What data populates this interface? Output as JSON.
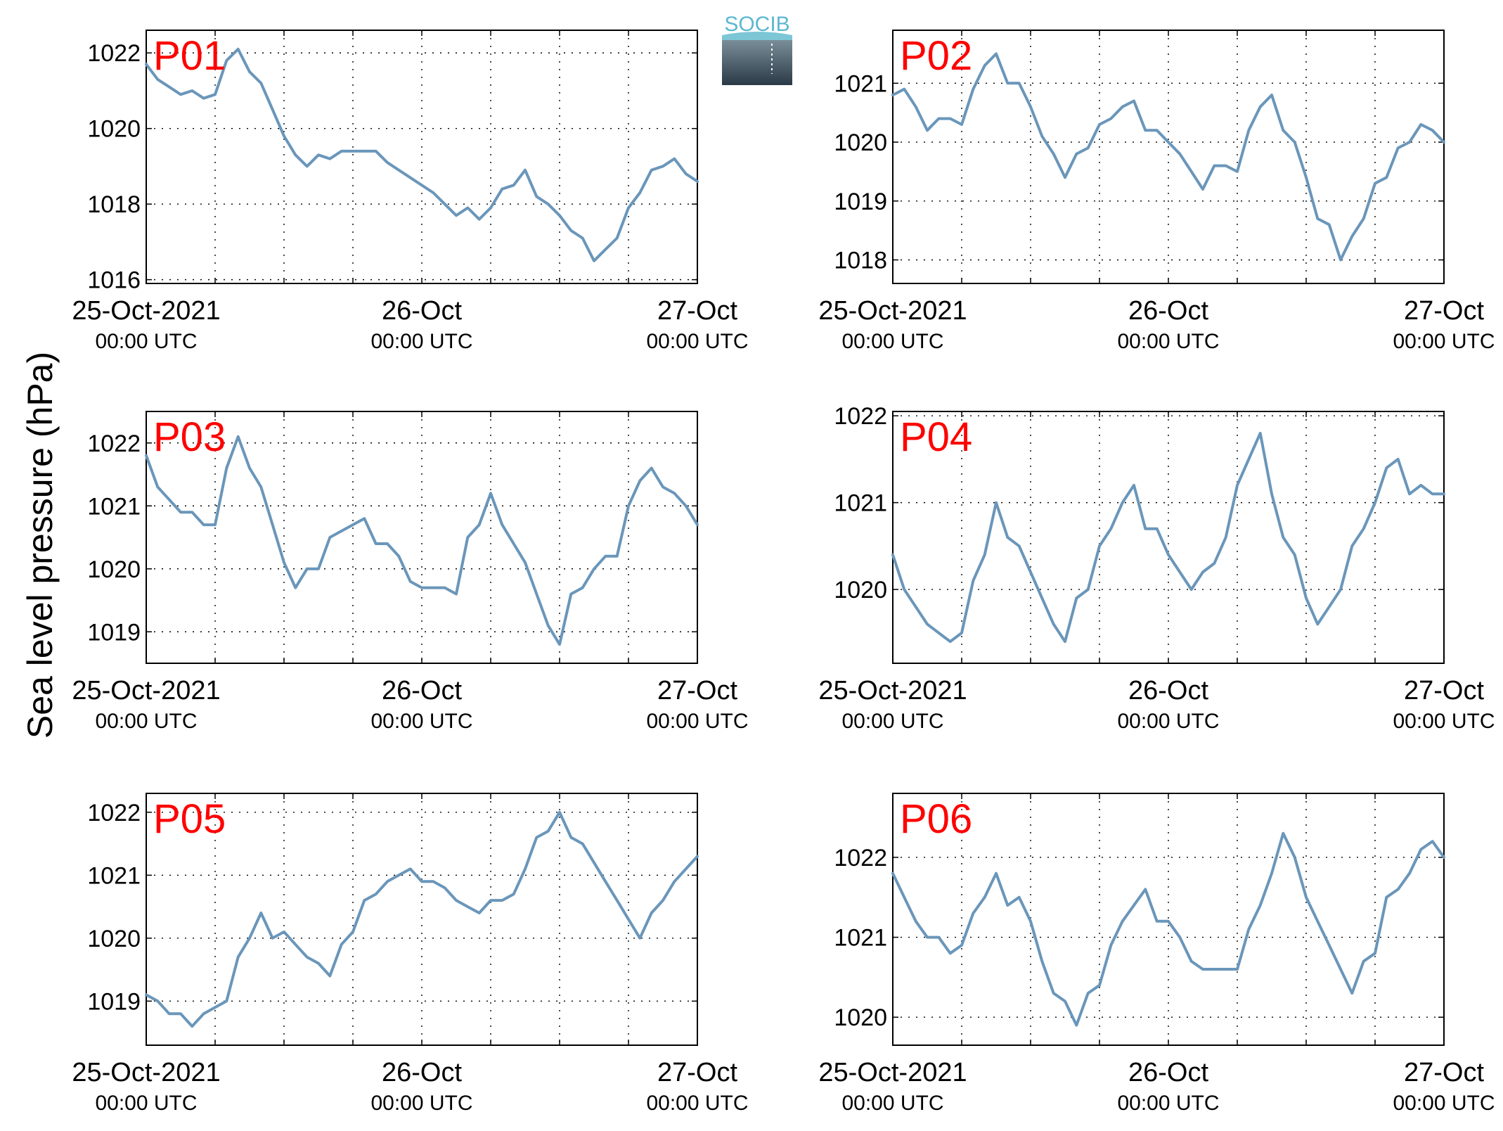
{
  "figure": {
    "ylabel": "Sea level pressure (hPa)",
    "logo_text": "SOCIB",
    "series_color": "#6a96ba",
    "label_color": "#ff0000"
  },
  "chart_data": [
    {
      "type": "line",
      "label": "P01",
      "x_ticks": [
        {
          "main": "25-Oct-2021",
          "sub": "00:00 UTC"
        },
        {
          "main": "26-Oct",
          "sub": "00:00 UTC"
        },
        {
          "main": "27-Oct",
          "sub": "00:00 UTC"
        }
      ],
      "xlim": [
        0,
        48
      ],
      "ylim": [
        1015.9,
        1022.6
      ],
      "yticks": [
        1016,
        1018,
        1020,
        1022
      ],
      "grid": true,
      "x": [
        0,
        1,
        2,
        3,
        4,
        5,
        6,
        7,
        8,
        9,
        10,
        11,
        12,
        13,
        14,
        15,
        16,
        17,
        18,
        19,
        20,
        21,
        22,
        23,
        24,
        25,
        26,
        27,
        28,
        29,
        30,
        31,
        32,
        33,
        34,
        35,
        36,
        37,
        38,
        39,
        40,
        41,
        42,
        43,
        44,
        45,
        46,
        47,
        48
      ],
      "values": [
        1021.7,
        1021.3,
        1021.1,
        1020.9,
        1021.0,
        1020.8,
        1020.9,
        1021.8,
        1022.1,
        1021.5,
        1021.2,
        1020.5,
        1019.8,
        1019.3,
        1019.0,
        1019.3,
        1019.2,
        1019.4,
        1019.4,
        1019.4,
        1019.4,
        1019.1,
        1018.9,
        1018.7,
        1018.5,
        1018.3,
        1018.0,
        1017.7,
        1017.9,
        1017.6,
        1017.9,
        1018.4,
        1018.5,
        1018.9,
        1018.2,
        1018.0,
        1017.7,
        1017.3,
        1017.1,
        1016.5,
        1016.8,
        1017.1,
        1017.9,
        1018.3,
        1018.9,
        1019.0,
        1019.2,
        1018.8,
        1018.6
      ]
    },
    {
      "type": "line",
      "label": "P02",
      "x_ticks": [
        {
          "main": "25-Oct-2021",
          "sub": "00:00 UTC"
        },
        {
          "main": "26-Oct",
          "sub": "00:00 UTC"
        },
        {
          "main": "27-Oct",
          "sub": "00:00 UTC"
        }
      ],
      "xlim": [
        0,
        48
      ],
      "ylim": [
        1017.6,
        1021.9
      ],
      "yticks": [
        1018,
        1019,
        1020,
        1021
      ],
      "grid": true,
      "x": [
        0,
        1,
        2,
        3,
        4,
        5,
        6,
        7,
        8,
        9,
        10,
        11,
        12,
        13,
        14,
        15,
        16,
        17,
        18,
        19,
        20,
        21,
        22,
        23,
        24,
        25,
        26,
        27,
        28,
        29,
        30,
        31,
        32,
        33,
        34,
        35,
        36,
        37,
        38,
        39,
        40,
        41,
        42,
        43,
        44,
        45,
        46,
        47,
        48
      ],
      "values": [
        1020.8,
        1020.9,
        1020.6,
        1020.2,
        1020.4,
        1020.4,
        1020.3,
        1020.9,
        1021.3,
        1021.5,
        1021.0,
        1021.0,
        1020.6,
        1020.1,
        1019.8,
        1019.4,
        1019.8,
        1019.9,
        1020.3,
        1020.4,
        1020.6,
        1020.7,
        1020.2,
        1020.2,
        1020.0,
        1019.8,
        1019.5,
        1019.2,
        1019.6,
        1019.6,
        1019.5,
        1020.2,
        1020.6,
        1020.8,
        1020.2,
        1020.0,
        1019.4,
        1018.7,
        1018.6,
        1018.0,
        1018.4,
        1018.7,
        1019.3,
        1019.4,
        1019.9,
        1020.0,
        1020.3,
        1020.2,
        1020.0
      ]
    },
    {
      "type": "line",
      "label": "P03",
      "x_ticks": [
        {
          "main": "25-Oct-2021",
          "sub": "00:00 UTC"
        },
        {
          "main": "26-Oct",
          "sub": "00:00 UTC"
        },
        {
          "main": "27-Oct",
          "sub": "00:00 UTC"
        }
      ],
      "xlim": [
        0,
        48
      ],
      "ylim": [
        1018.5,
        1022.5
      ],
      "yticks": [
        1019,
        1020,
        1021,
        1022
      ],
      "grid": true,
      "x": [
        0,
        1,
        2,
        3,
        4,
        5,
        6,
        7,
        8,
        9,
        10,
        11,
        12,
        13,
        14,
        15,
        16,
        17,
        18,
        19,
        20,
        21,
        22,
        23,
        24,
        25,
        26,
        27,
        28,
        29,
        30,
        31,
        32,
        33,
        34,
        35,
        36,
        37,
        38,
        39,
        40,
        41,
        42,
        43,
        44,
        45,
        46,
        47,
        48
      ],
      "values": [
        1021.8,
        1021.3,
        1021.1,
        1020.9,
        1020.9,
        1020.7,
        1020.7,
        1021.6,
        1022.1,
        1021.6,
        1021.3,
        1020.7,
        1020.1,
        1019.7,
        1020.0,
        1020.0,
        1020.5,
        1020.6,
        1020.7,
        1020.8,
        1020.4,
        1020.4,
        1020.2,
        1019.8,
        1019.7,
        1019.7,
        1019.7,
        1019.6,
        1020.5,
        1020.7,
        1021.2,
        1020.7,
        1020.4,
        1020.1,
        1019.6,
        1019.1,
        1018.8,
        1019.6,
        1019.7,
        1020.0,
        1020.2,
        1020.2,
        1021.0,
        1021.4,
        1021.6,
        1021.3,
        1021.2,
        1021.0,
        1020.7
      ]
    },
    {
      "type": "line",
      "label": "P04",
      "x_ticks": [
        {
          "main": "25-Oct-2021",
          "sub": "00:00 UTC"
        },
        {
          "main": "26-Oct",
          "sub": "00:00 UTC"
        },
        {
          "main": "27-Oct",
          "sub": "00:00 UTC"
        }
      ],
      "xlim": [
        0,
        48
      ],
      "ylim": [
        1019.15,
        1022.05
      ],
      "yticks": [
        1020,
        1021,
        1022
      ],
      "grid": true,
      "x": [
        0,
        1,
        2,
        3,
        4,
        5,
        6,
        7,
        8,
        9,
        10,
        11,
        12,
        13,
        14,
        15,
        16,
        17,
        18,
        19,
        20,
        21,
        22,
        23,
        24,
        25,
        26,
        27,
        28,
        29,
        30,
        31,
        32,
        33,
        34,
        35,
        36,
        37,
        38,
        39,
        40,
        41,
        42,
        43,
        44,
        45,
        46,
        47,
        48
      ],
      "values": [
        1020.4,
        1020.0,
        1019.8,
        1019.6,
        1019.5,
        1019.4,
        1019.5,
        1020.1,
        1020.4,
        1021.0,
        1020.6,
        1020.5,
        1020.2,
        1019.9,
        1019.6,
        1019.4,
        1019.9,
        1020.0,
        1020.5,
        1020.7,
        1021.0,
        1021.2,
        1020.7,
        1020.7,
        1020.4,
        1020.2,
        1020.0,
        1020.2,
        1020.3,
        1020.6,
        1021.2,
        1021.5,
        1021.8,
        1021.1,
        1020.6,
        1020.4,
        1019.9,
        1019.6,
        1019.8,
        1020.0,
        1020.5,
        1020.7,
        1021.0,
        1021.4,
        1021.5,
        1021.1,
        1021.2,
        1021.1,
        1021.1
      ]
    },
    {
      "type": "line",
      "label": "P05",
      "x_ticks": [
        {
          "main": "25-Oct-2021",
          "sub": "00:00 UTC"
        },
        {
          "main": "26-Oct",
          "sub": "00:00 UTC"
        },
        {
          "main": "27-Oct",
          "sub": "00:00 UTC"
        }
      ],
      "xlim": [
        0,
        48
      ],
      "ylim": [
        1018.3,
        1022.3
      ],
      "yticks": [
        1019,
        1020,
        1021,
        1022
      ],
      "grid": true,
      "x": [
        0,
        1,
        2,
        3,
        4,
        5,
        6,
        7,
        8,
        9,
        10,
        11,
        12,
        13,
        14,
        15,
        16,
        17,
        18,
        19,
        20,
        21,
        22,
        23,
        24,
        25,
        26,
        27,
        28,
        29,
        30,
        31,
        32,
        33,
        34,
        35,
        36,
        37,
        38,
        39,
        40,
        41,
        42,
        43,
        44,
        45,
        46,
        47,
        48
      ],
      "values": [
        1019.1,
        1019.0,
        1018.8,
        1018.8,
        1018.6,
        1018.8,
        1018.9,
        1019.0,
        1019.7,
        1020.0,
        1020.4,
        1020.0,
        1020.1,
        1019.9,
        1019.7,
        1019.6,
        1019.4,
        1019.9,
        1020.1,
        1020.6,
        1020.7,
        1020.9,
        1021.0,
        1021.1,
        1020.9,
        1020.9,
        1020.8,
        1020.6,
        1020.5,
        1020.4,
        1020.6,
        1020.6,
        1020.7,
        1021.1,
        1021.6,
        1021.7,
        1022.0,
        1021.6,
        1021.5,
        1021.2,
        1020.9,
        1020.6,
        1020.3,
        1020.0,
        1020.4,
        1020.6,
        1020.9,
        1021.1,
        1021.3
      ]
    },
    {
      "type": "line",
      "label": "P06",
      "x_ticks": [
        {
          "main": "25-Oct-2021",
          "sub": "00:00 UTC"
        },
        {
          "main": "26-Oct",
          "sub": "00:00 UTC"
        },
        {
          "main": "27-Oct",
          "sub": "00:00 UTC"
        }
      ],
      "xlim": [
        0,
        48
      ],
      "ylim": [
        1019.65,
        1022.8
      ],
      "yticks": [
        1020,
        1021,
        1022
      ],
      "grid": true,
      "x": [
        0,
        1,
        2,
        3,
        4,
        5,
        6,
        7,
        8,
        9,
        10,
        11,
        12,
        13,
        14,
        15,
        16,
        17,
        18,
        19,
        20,
        21,
        22,
        23,
        24,
        25,
        26,
        27,
        28,
        29,
        30,
        31,
        32,
        33,
        34,
        35,
        36,
        37,
        38,
        39,
        40,
        41,
        42,
        43,
        44,
        45,
        46,
        47,
        48
      ],
      "values": [
        1021.8,
        1021.5,
        1021.2,
        1021.0,
        1021.0,
        1020.8,
        1020.9,
        1021.3,
        1021.5,
        1021.8,
        1021.4,
        1021.5,
        1021.2,
        1020.7,
        1020.3,
        1020.2,
        1019.9,
        1020.3,
        1020.4,
        1020.9,
        1021.2,
        1021.4,
        1021.6,
        1021.2,
        1021.2,
        1021.0,
        1020.7,
        1020.6,
        1020.6,
        1020.6,
        1020.6,
        1021.1,
        1021.4,
        1021.8,
        1022.3,
        1022.0,
        1021.5,
        1021.2,
        1020.9,
        1020.6,
        1020.3,
        1020.7,
        1020.8,
        1021.5,
        1021.6,
        1021.8,
        1022.1,
        1022.2,
        1022.0
      ]
    }
  ]
}
